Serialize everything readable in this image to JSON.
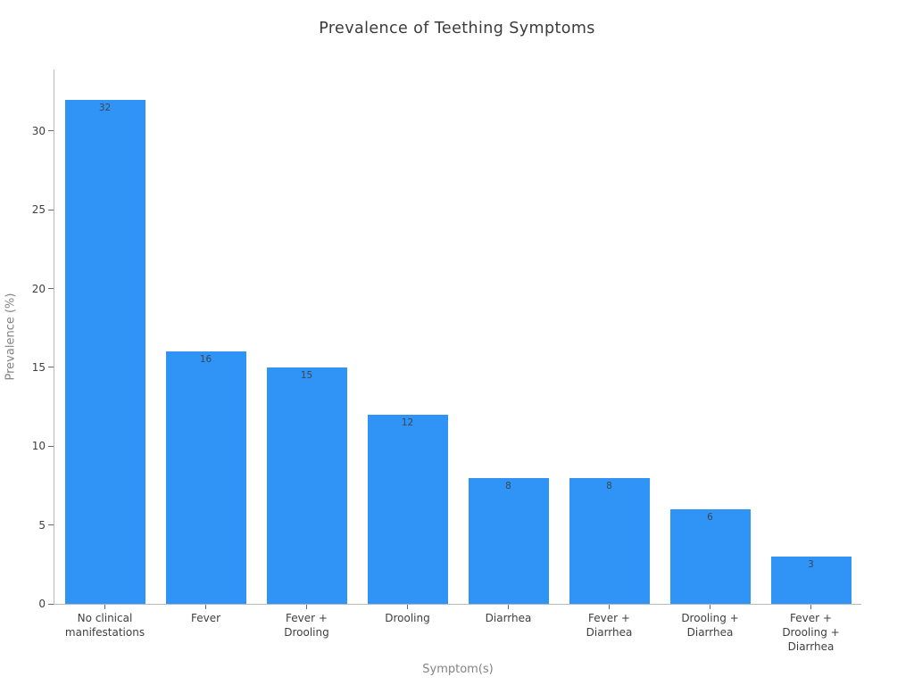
{
  "chart_data": {
    "type": "bar",
    "title": "Prevalence of Teething Symptoms",
    "xlabel": "Symptom(s)",
    "ylabel": "Prevalence (%)",
    "categories": [
      "No clinical manifestations",
      "Fever",
      "Fever + Drooling",
      "Drooling",
      "Diarrhea",
      "Fever + Diarrhea",
      "Drooling + Diarrhea",
      "Fever + Drooling + Diarrhea"
    ],
    "categories_wrapped": [
      [
        "No clinical",
        "manifestations"
      ],
      [
        "Fever"
      ],
      [
        "Fever +",
        "Drooling"
      ],
      [
        "Drooling"
      ],
      [
        "Diarrhea"
      ],
      [
        "Fever +",
        "Diarrhea"
      ],
      [
        "Drooling +",
        "Diarrhea"
      ],
      [
        "Fever +",
        "Drooling +",
        "Diarrhea"
      ]
    ],
    "values": [
      32,
      16,
      15,
      12,
      8,
      8,
      6,
      3
    ],
    "bar_labels": [
      "32",
      "16",
      "15",
      "12",
      "8",
      "8",
      "6",
      "3"
    ],
    "yticks": [
      0,
      5,
      10,
      15,
      20,
      25,
      30
    ],
    "ylim": [
      0,
      33.9
    ],
    "grid": false,
    "legend": false,
    "bar_color": "#2f94f5",
    "colors": {
      "title_text": "#3b3b3b",
      "tick_text": "#3f3f3f",
      "axis_title_text": "#848484",
      "bar_value_text": "#3d4653",
      "axis_line": "#b9b9b9",
      "tick_mark": "#6b6b6b",
      "background": "#ffffff"
    }
  }
}
